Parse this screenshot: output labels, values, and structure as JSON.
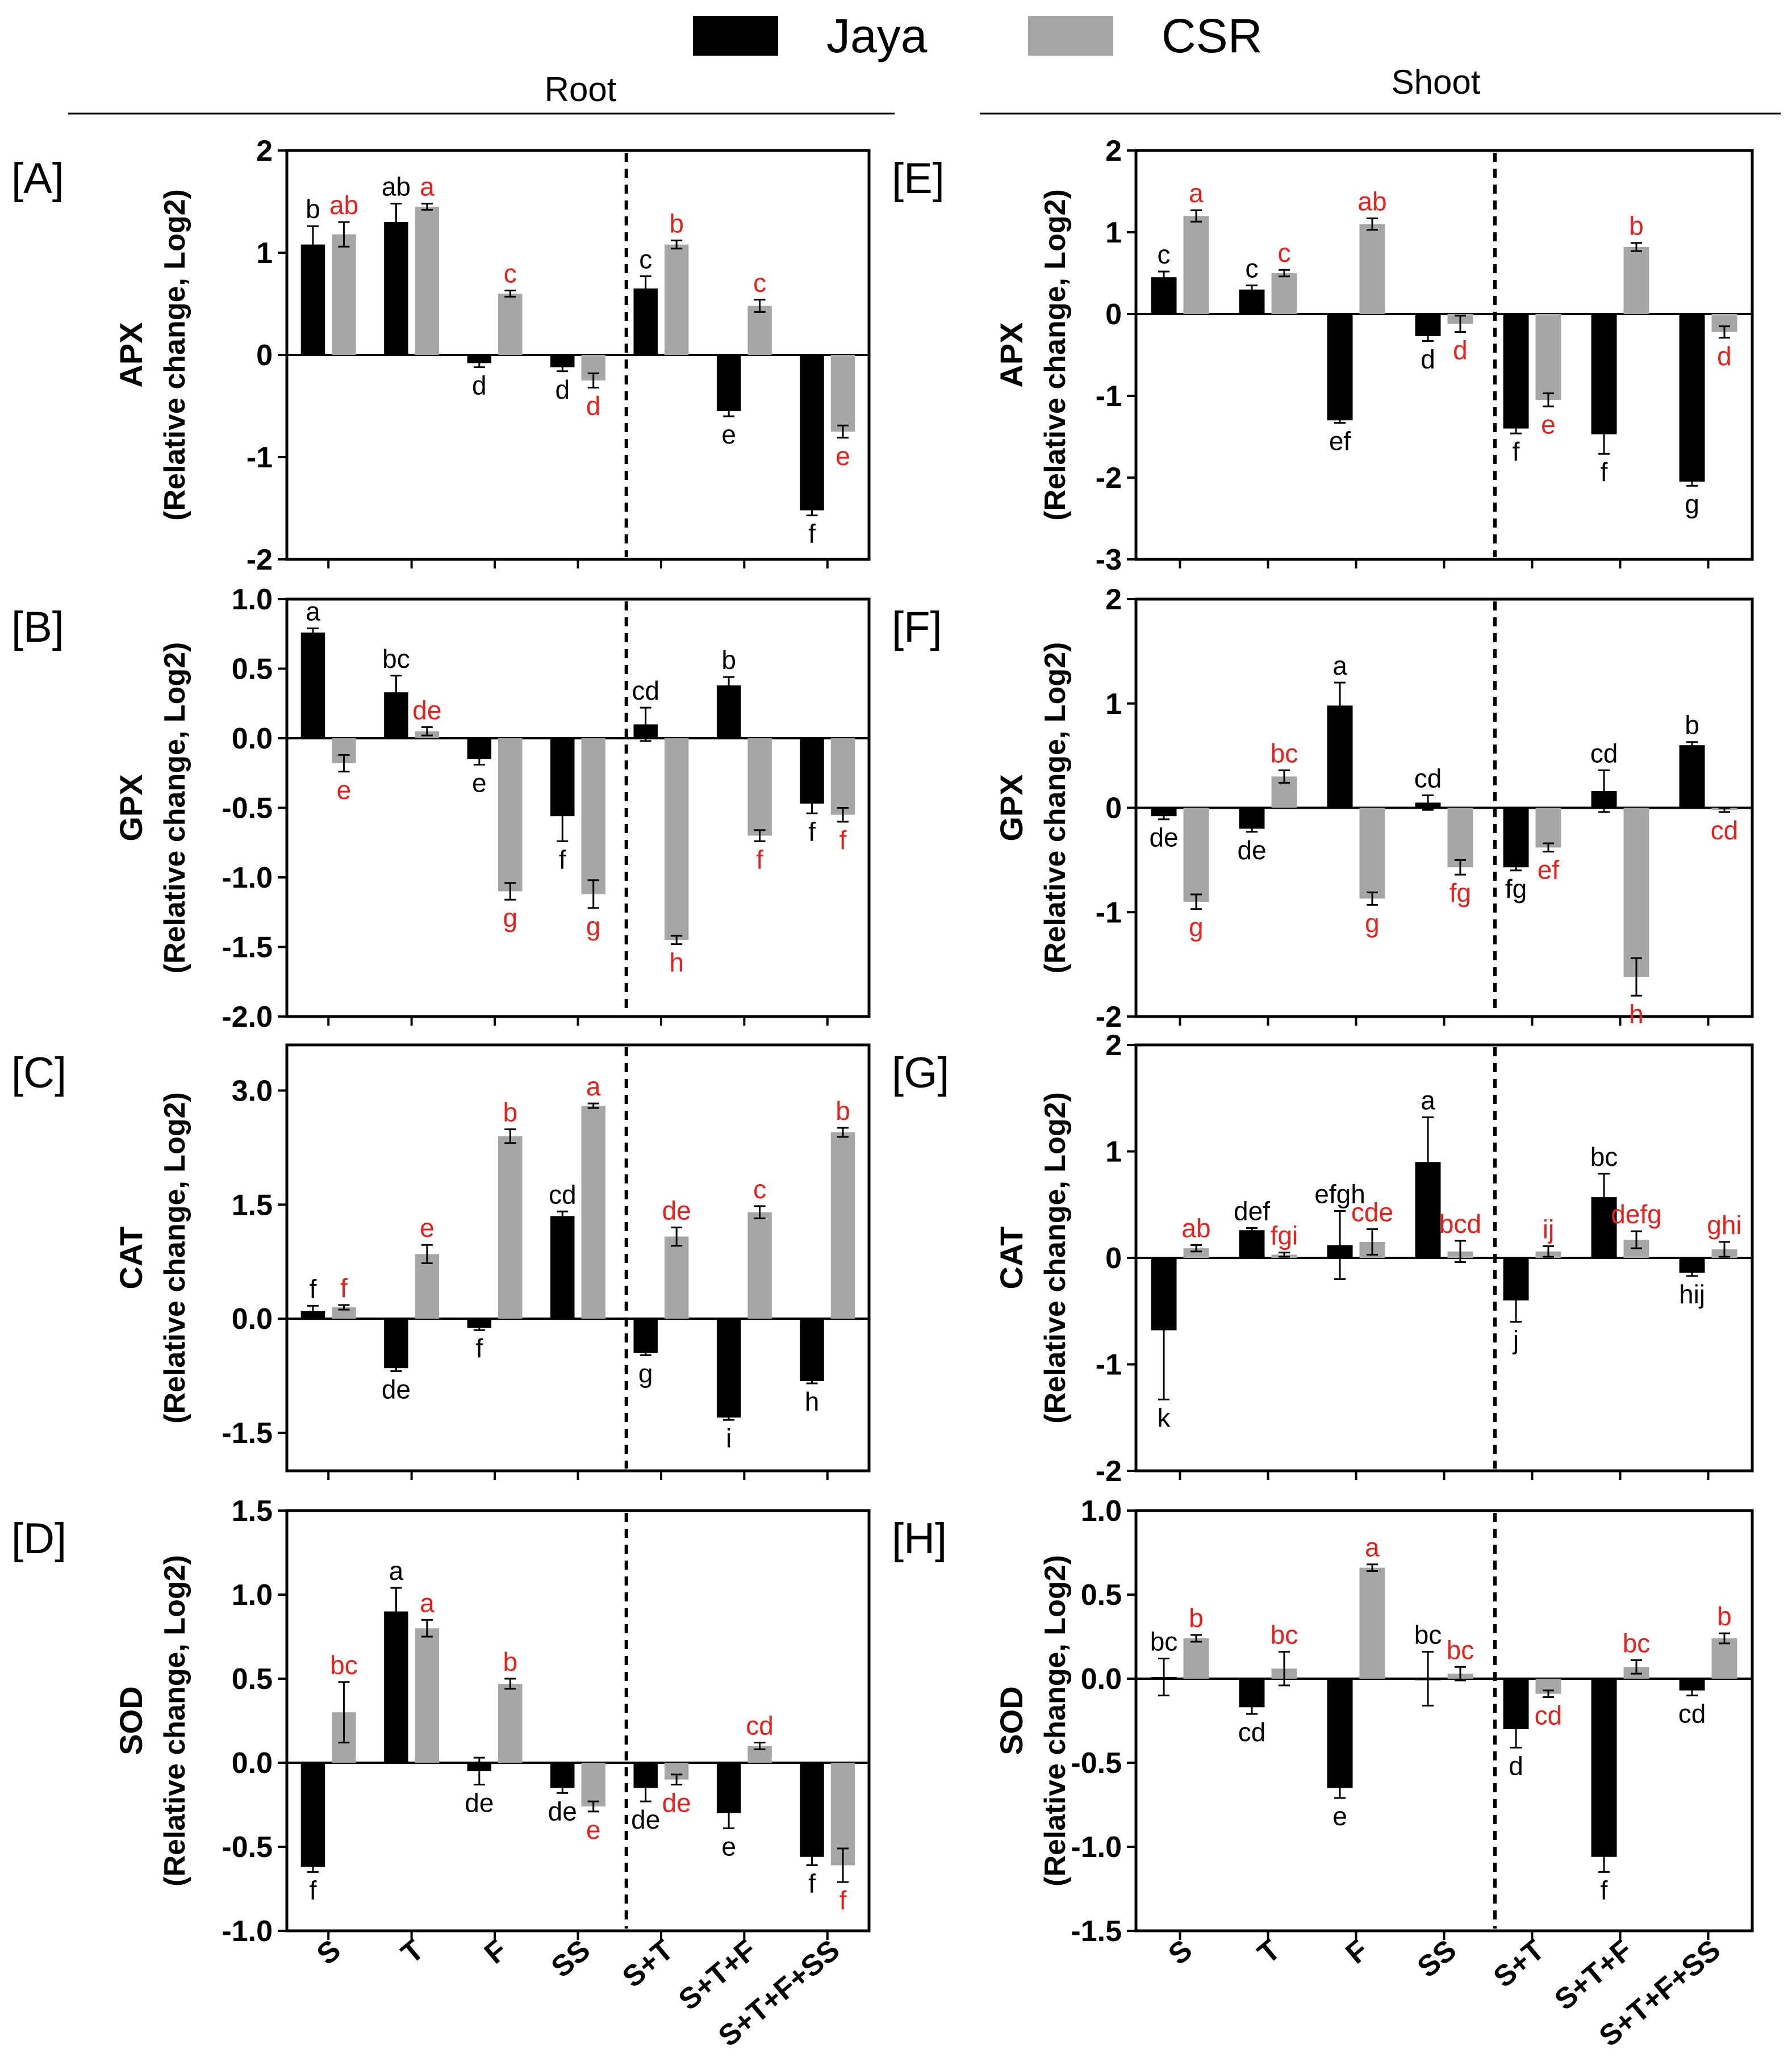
{
  "legend": {
    "series": [
      {
        "name": "Jaya",
        "color": "#000000"
      },
      {
        "name": "CSR",
        "color": "#a6a6a6"
      }
    ],
    "placement": "top-center"
  },
  "section_titles": {
    "left": "Root",
    "right": "Shoot"
  },
  "colors": {
    "jaya_letter": "#000000",
    "csr_letter": "#e8201c"
  },
  "x_categories": [
    "S",
    "T",
    "F",
    "SS",
    "S+T",
    "S+T+F",
    "S+T+F+SS"
  ],
  "chart_data": [
    {
      "panel": "[A]",
      "type": "bar",
      "gene": "APX",
      "tissue": "Root",
      "ylabel_top": "APX",
      "ylabel_bottom": "(Relative change, Log2)",
      "ylim": [
        -2,
        2
      ],
      "yticks": [
        2,
        1,
        0,
        -1,
        -2
      ],
      "ytick_labels": [
        "2",
        "1",
        "0",
        "-1",
        "-2"
      ],
      "series": [
        {
          "name": "Jaya",
          "values": [
            1.08,
            1.3,
            -0.08,
            -0.12,
            0.65,
            -0.55,
            -1.52
          ],
          "errors": [
            0.18,
            0.18,
            0.04,
            0.04,
            0.12,
            0.05,
            0.05
          ],
          "letters": [
            "b",
            "ab",
            "d",
            "d",
            "c",
            "e",
            "f"
          ]
        },
        {
          "name": "CSR",
          "values": [
            1.18,
            1.45,
            0.6,
            -0.25,
            1.08,
            0.48,
            -0.75
          ],
          "errors": [
            0.12,
            0.03,
            0.03,
            0.07,
            0.04,
            0.06,
            0.06
          ],
          "letters": [
            "ab",
            "a",
            "c",
            "d",
            "b",
            "c",
            "e"
          ]
        }
      ]
    },
    {
      "panel": "[B]",
      "type": "bar",
      "gene": "GPX",
      "tissue": "Root",
      "ylabel_top": "GPX",
      "ylabel_bottom": "(Relative change, Log2)",
      "ylim": [
        -2.0,
        1.0
      ],
      "yticks": [
        1.0,
        0.5,
        0.0,
        -0.5,
        -1.0,
        -1.5,
        -2.0
      ],
      "ytick_labels": [
        "1.0",
        "0.5",
        "0.0",
        "-0.5",
        "-1.0",
        "-1.5",
        "-2.0"
      ],
      "series": [
        {
          "name": "Jaya",
          "values": [
            0.76,
            0.33,
            -0.15,
            -0.56,
            0.1,
            0.38,
            -0.47
          ],
          "errors": [
            0.03,
            0.12,
            0.04,
            0.18,
            0.12,
            0.06,
            0.07
          ],
          "letters": [
            "a",
            "bc",
            "e",
            "f",
            "cd",
            "b",
            "f"
          ]
        },
        {
          "name": "CSR",
          "values": [
            -0.18,
            0.05,
            -1.1,
            -1.12,
            -1.45,
            -0.7,
            -0.55
          ],
          "errors": [
            0.06,
            0.03,
            0.06,
            0.1,
            0.03,
            0.04,
            0.05
          ],
          "letters": [
            "e",
            "de",
            "g",
            "g",
            "h",
            "f",
            "f"
          ]
        }
      ]
    },
    {
      "panel": "[C]",
      "type": "bar",
      "gene": "CAT",
      "tissue": "Root",
      "ylabel_top": "CAT",
      "ylabel_bottom": "(Relative change, Log2)",
      "ylim": [
        -2.0,
        3.6
      ],
      "yticks": [
        3.0,
        1.5,
        0.0,
        -1.5
      ],
      "ytick_labels": [
        "3.0",
        "1.5",
        "0.0",
        "-1.5"
      ],
      "series": [
        {
          "name": "Jaya",
          "values": [
            0.1,
            -0.65,
            -0.12,
            1.35,
            -0.45,
            -1.3,
            -0.82
          ],
          "errors": [
            0.07,
            0.04,
            0.03,
            0.06,
            0.03,
            0.03,
            0.03
          ],
          "letters": [
            "f",
            "de",
            "f",
            "cd",
            "g",
            "i",
            "h"
          ]
        },
        {
          "name": "CSR",
          "values": [
            0.15,
            0.85,
            2.4,
            2.8,
            1.08,
            1.4,
            2.45
          ],
          "errors": [
            0.03,
            0.12,
            0.09,
            0.03,
            0.12,
            0.08,
            0.06
          ],
          "letters": [
            "f",
            "e",
            "b",
            "a",
            "de",
            "c",
            "b"
          ]
        }
      ]
    },
    {
      "panel": "[D]",
      "type": "bar",
      "gene": "SOD",
      "tissue": "Root",
      "ylabel_top": "SOD",
      "ylabel_bottom": "(Relative change, Log2)",
      "ylim": [
        -1.0,
        1.5
      ],
      "yticks": [
        1.5,
        1.0,
        0.5,
        0.0,
        -0.5,
        -1.0
      ],
      "ytick_labels": [
        "1.5",
        "1.0",
        "0.5",
        "0.0",
        "-0.5",
        "-1.0"
      ],
      "series": [
        {
          "name": "Jaya",
          "values": [
            -0.62,
            0.9,
            -0.05,
            -0.15,
            -0.15,
            -0.3,
            -0.56
          ],
          "errors": [
            0.03,
            0.14,
            0.08,
            0.03,
            0.08,
            0.09,
            0.05
          ],
          "letters": [
            "f",
            "a",
            "de",
            "de",
            "de",
            "e",
            "f"
          ]
        },
        {
          "name": "CSR",
          "values": [
            0.3,
            0.8,
            0.47,
            -0.26,
            -0.1,
            0.1,
            -0.61
          ],
          "errors": [
            0.18,
            0.05,
            0.03,
            0.03,
            0.03,
            0.02,
            0.1
          ],
          "letters": [
            "bc",
            "a",
            "b",
            "e",
            "de",
            "cd",
            "f"
          ]
        }
      ]
    },
    {
      "panel": "[E]",
      "type": "bar",
      "gene": "APX",
      "tissue": "Shoot",
      "ylabel_top": "APX",
      "ylabel_bottom": "(Relative change, Log2)",
      "ylim": [
        -3,
        2
      ],
      "yticks": [
        2,
        1,
        0,
        -1,
        -2,
        -3
      ],
      "ytick_labels": [
        "2",
        "1",
        "0",
        "-1",
        "-2",
        "-3"
      ],
      "series": [
        {
          "name": "Jaya",
          "values": [
            0.45,
            0.3,
            -1.3,
            -0.27,
            -1.4,
            -1.47,
            -2.05
          ],
          "errors": [
            0.07,
            0.05,
            0.03,
            0.06,
            0.06,
            0.24,
            0.05
          ],
          "letters": [
            "c",
            "c",
            "ef",
            "d",
            "f",
            "f",
            "g"
          ]
        },
        {
          "name": "CSR",
          "values": [
            1.2,
            0.5,
            1.1,
            -0.12,
            -1.05,
            0.82,
            -0.22
          ],
          "errors": [
            0.07,
            0.04,
            0.07,
            0.1,
            0.08,
            0.05,
            0.07
          ],
          "letters": [
            "a",
            "c",
            "ab",
            "d",
            "e",
            "b",
            "d"
          ]
        }
      ]
    },
    {
      "panel": "[F]",
      "type": "bar",
      "gene": "GPX",
      "tissue": "Shoot",
      "ylabel_top": "GPX",
      "ylabel_bottom": "(Relative change, Log2)",
      "ylim": [
        -2,
        2
      ],
      "yticks": [
        2,
        1,
        0,
        -1,
        -2
      ],
      "ytick_labels": [
        "2",
        "1",
        "0",
        "-1",
        "-2"
      ],
      "series": [
        {
          "name": "Jaya",
          "values": [
            -0.08,
            -0.2,
            0.98,
            0.05,
            -0.57,
            0.16,
            0.6
          ],
          "errors": [
            0.03,
            0.03,
            0.22,
            0.07,
            0.03,
            0.2,
            0.03
          ],
          "letters": [
            "de",
            "de",
            "a",
            "cd",
            "fg",
            "cd",
            "b"
          ]
        },
        {
          "name": "CSR",
          "values": [
            -0.9,
            0.3,
            -0.87,
            -0.57,
            -0.38,
            -1.62,
            -0.02
          ],
          "errors": [
            0.07,
            0.06,
            0.06,
            0.07,
            0.04,
            0.18,
            0.02
          ],
          "letters": [
            "g",
            "bc",
            "g",
            "fg",
            "ef",
            "h",
            "cd"
          ]
        }
      ]
    },
    {
      "panel": "[G]",
      "type": "bar",
      "gene": "CAT",
      "tissue": "Shoot",
      "ylabel_top": "CAT",
      "ylabel_bottom": "(Relative change, Log2)",
      "ylim": [
        -2,
        2
      ],
      "yticks": [
        2,
        1,
        0,
        -1,
        -2
      ],
      "ytick_labels": [
        "2",
        "1",
        "0",
        "-1",
        "-2"
      ],
      "series": [
        {
          "name": "Jaya",
          "values": [
            -0.68,
            0.26,
            0.12,
            0.9,
            -0.4,
            0.57,
            -0.14
          ],
          "errors": [
            0.65,
            0.02,
            0.32,
            0.42,
            0.2,
            0.22,
            0.03
          ],
          "letters": [
            "k",
            "def",
            "efgh",
            "a",
            "j",
            "bc",
            "hij"
          ]
        },
        {
          "name": "CSR",
          "values": [
            0.09,
            0.03,
            0.15,
            0.06,
            0.06,
            0.17,
            0.08
          ],
          "errors": [
            0.03,
            0.02,
            0.12,
            0.1,
            0.05,
            0.08,
            0.07
          ],
          "letters": [
            "ab",
            "fgi",
            "cde",
            "bcd",
            "ij",
            "defg",
            "ghi"
          ]
        }
      ]
    },
    {
      "panel": "[H]",
      "type": "bar",
      "gene": "SOD",
      "tissue": "Shoot",
      "ylabel_top": "SOD",
      "ylabel_bottom": "(Relative change, Log2)",
      "ylim": [
        -1.5,
        1.0
      ],
      "yticks": [
        1.0,
        0.5,
        0.0,
        -0.5,
        -1.0,
        -1.5
      ],
      "ytick_labels": [
        "1.0",
        "0.5",
        "0.0",
        "-0.5",
        "-1.0",
        "-1.5"
      ],
      "series": [
        {
          "name": "Jaya",
          "values": [
            0.01,
            -0.17,
            -0.65,
            0.0,
            -0.3,
            -1.06,
            -0.07
          ],
          "errors": [
            0.11,
            0.04,
            0.06,
            0.16,
            0.11,
            0.09,
            0.03
          ],
          "letters": [
            "bc",
            "cd",
            "e",
            "bc",
            "d",
            "f",
            "cd"
          ]
        },
        {
          "name": "CSR",
          "values": [
            0.24,
            0.06,
            0.66,
            0.03,
            -0.09,
            0.07,
            0.24
          ],
          "errors": [
            0.02,
            0.1,
            0.02,
            0.04,
            0.02,
            0.04,
            0.03
          ],
          "letters": [
            "b",
            "bc",
            "a",
            "bc",
            "cd",
            "bc",
            "b"
          ]
        }
      ]
    }
  ]
}
